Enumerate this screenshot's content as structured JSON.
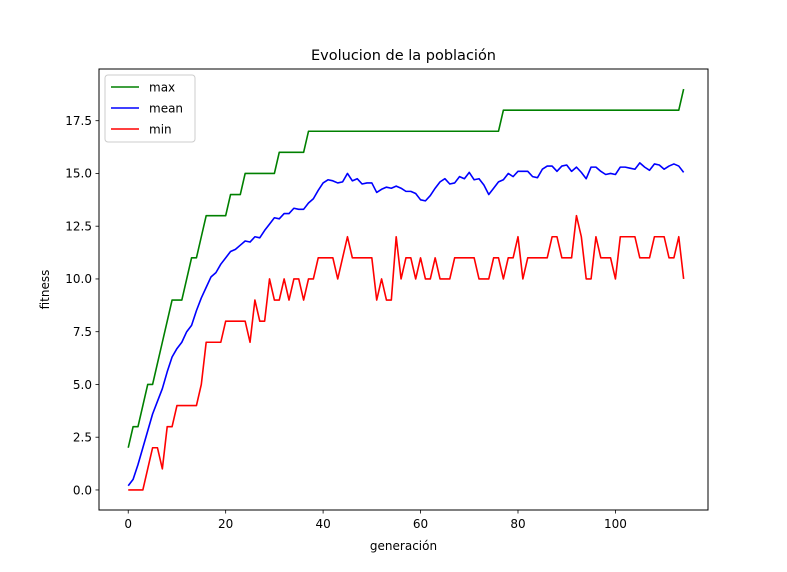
{
  "chart_data": {
    "type": "line",
    "title": "Evolucion de la población",
    "xlabel": "generación",
    "ylabel": "fitness",
    "xlim": [
      -6,
      119
    ],
    "ylim": [
      -0.95,
      19.95
    ],
    "xticks": [
      0,
      20,
      40,
      60,
      80,
      100
    ],
    "yticks": [
      0.0,
      2.5,
      5.0,
      7.5,
      10.0,
      12.5,
      15.0,
      17.5
    ],
    "ytick_labels": [
      "0.0",
      "2.5",
      "5.0",
      "7.5",
      "10.0",
      "12.5",
      "15.0",
      "17.5"
    ],
    "grid": false,
    "legend_position": "top-left",
    "series": [
      {
        "name": "max",
        "color": "#008000",
        "x": [
          0,
          1,
          2,
          3,
          4,
          5,
          6,
          7,
          8,
          9,
          10,
          11,
          12,
          13,
          14,
          15,
          16,
          17,
          18,
          19,
          20,
          21,
          22,
          23,
          24,
          25,
          26,
          27,
          28,
          29,
          30,
          31,
          32,
          33,
          34,
          35,
          36,
          37,
          38,
          39,
          40,
          41,
          42,
          43,
          44,
          45,
          46,
          47,
          48,
          49,
          50,
          51,
          52,
          53,
          54,
          55,
          56,
          57,
          58,
          59,
          60,
          61,
          62,
          63,
          64,
          65,
          66,
          67,
          68,
          69,
          70,
          71,
          72,
          73,
          74,
          75,
          76,
          77,
          78,
          79,
          80,
          81,
          82,
          83,
          84,
          85,
          86,
          87,
          88,
          89,
          90,
          91,
          92,
          93,
          94,
          95,
          96,
          97,
          98,
          99,
          100,
          101,
          102,
          103,
          104,
          105,
          106,
          107,
          108,
          109,
          110,
          111,
          112,
          113,
          114
        ],
        "values": [
          2,
          3,
          3,
          4,
          5,
          5,
          6,
          7,
          8,
          9,
          9,
          9,
          10,
          11,
          11,
          12,
          13,
          13,
          13,
          13,
          13,
          14,
          14,
          14,
          15,
          15,
          15,
          15,
          15,
          15,
          15,
          16,
          16,
          16,
          16,
          16,
          16,
          17,
          17,
          17,
          17,
          17,
          17,
          17,
          17,
          17,
          17,
          17,
          17,
          17,
          17,
          17,
          17,
          17,
          17,
          17,
          17,
          17,
          17,
          17,
          17,
          17,
          17,
          17,
          17,
          17,
          17,
          17,
          17,
          17,
          17,
          17,
          17,
          17,
          17,
          17,
          17,
          18,
          18,
          18,
          18,
          18,
          18,
          18,
          18,
          18,
          18,
          18,
          18,
          18,
          18,
          18,
          18,
          18,
          18,
          18,
          18,
          18,
          18,
          18,
          18,
          18,
          18,
          18,
          18,
          18,
          18,
          18,
          18,
          18,
          18,
          18,
          18,
          18,
          19
        ]
      },
      {
        "name": "mean",
        "color": "#0000ff",
        "x": [
          0,
          1,
          2,
          3,
          4,
          5,
          6,
          7,
          8,
          9,
          10,
          11,
          12,
          13,
          14,
          15,
          16,
          17,
          18,
          19,
          20,
          21,
          22,
          23,
          24,
          25,
          26,
          27,
          28,
          29,
          30,
          31,
          32,
          33,
          34,
          35,
          36,
          37,
          38,
          39,
          40,
          41,
          42,
          43,
          44,
          45,
          46,
          47,
          48,
          49,
          50,
          51,
          52,
          53,
          54,
          55,
          56,
          57,
          58,
          59,
          60,
          61,
          62,
          63,
          64,
          65,
          66,
          67,
          68,
          69,
          70,
          71,
          72,
          73,
          74,
          75,
          76,
          77,
          78,
          79,
          80,
          81,
          82,
          83,
          84,
          85,
          86,
          87,
          88,
          89,
          90,
          91,
          92,
          93,
          94,
          95,
          96,
          97,
          98,
          99,
          100,
          101,
          102,
          103,
          104,
          105,
          106,
          107,
          108,
          109,
          110,
          111,
          112,
          113,
          114
        ],
        "values": [
          0.2,
          0.5,
          1.2,
          2.0,
          2.8,
          3.6,
          4.2,
          4.8,
          5.6,
          6.3,
          6.7,
          7.0,
          7.5,
          7.8,
          8.5,
          9.1,
          9.6,
          10.1,
          10.3,
          10.7,
          11.0,
          11.3,
          11.4,
          11.6,
          11.8,
          11.75,
          12.0,
          11.95,
          12.3,
          12.6,
          12.9,
          12.85,
          13.1,
          13.1,
          13.35,
          13.3,
          13.3,
          13.6,
          13.8,
          14.2,
          14.55,
          14.7,
          14.65,
          14.55,
          14.6,
          15.0,
          14.65,
          14.75,
          14.5,
          14.55,
          14.55,
          14.1,
          14.25,
          14.35,
          14.3,
          14.4,
          14.3,
          14.15,
          14.15,
          14.05,
          13.75,
          13.7,
          13.95,
          14.3,
          14.6,
          14.75,
          14.5,
          14.55,
          14.85,
          14.75,
          15.05,
          14.7,
          14.75,
          14.45,
          14.0,
          14.3,
          14.6,
          14.7,
          15.0,
          14.85,
          15.1,
          15.1,
          15.1,
          14.85,
          14.8,
          15.2,
          15.35,
          15.35,
          15.1,
          15.35,
          15.4,
          15.1,
          15.3,
          15.05,
          14.75,
          15.3,
          15.3,
          15.1,
          14.95,
          15.0,
          14.95,
          15.3,
          15.3,
          15.25,
          15.2,
          15.5,
          15.3,
          15.15,
          15.45,
          15.4,
          15.2,
          15.35,
          15.45,
          15.35,
          15.05
        ]
      },
      {
        "name": "min",
        "color": "#ff0000",
        "x": [
          0,
          1,
          2,
          3,
          4,
          5,
          6,
          7,
          8,
          9,
          10,
          11,
          12,
          13,
          14,
          15,
          16,
          17,
          18,
          19,
          20,
          21,
          22,
          23,
          24,
          25,
          26,
          27,
          28,
          29,
          30,
          31,
          32,
          33,
          34,
          35,
          36,
          37,
          38,
          39,
          40,
          41,
          42,
          43,
          44,
          45,
          46,
          47,
          48,
          49,
          50,
          51,
          52,
          53,
          54,
          55,
          56,
          57,
          58,
          59,
          60,
          61,
          62,
          63,
          64,
          65,
          66,
          67,
          68,
          69,
          70,
          71,
          72,
          73,
          74,
          75,
          76,
          77,
          78,
          79,
          80,
          81,
          82,
          83,
          84,
          85,
          86,
          87,
          88,
          89,
          90,
          91,
          92,
          93,
          94,
          95,
          96,
          97,
          98,
          99,
          100,
          101,
          102,
          103,
          104,
          105,
          106,
          107,
          108,
          109,
          110,
          111,
          112,
          113,
          114
        ],
        "values": [
          0,
          0,
          0,
          0,
          1,
          2,
          2,
          1,
          3,
          3,
          4,
          4,
          4,
          4,
          4,
          5,
          7,
          7,
          7,
          7,
          8,
          8,
          8,
          8,
          8,
          7,
          9,
          8,
          8,
          10,
          9,
          9,
          10,
          9,
          10,
          10,
          9,
          10,
          10,
          11,
          11,
          11,
          11,
          10,
          11,
          12,
          11,
          11,
          11,
          11,
          11,
          9,
          10,
          9,
          9,
          12,
          10,
          11,
          11,
          10,
          11,
          10,
          10,
          11,
          10,
          10,
          10,
          11,
          11,
          11,
          11,
          11,
          10,
          10,
          10,
          11,
          11,
          10,
          11,
          11,
          12,
          10,
          11,
          11,
          11,
          11,
          11,
          12,
          12,
          11,
          11,
          11,
          13,
          12,
          10,
          10,
          12,
          11,
          11,
          11,
          10,
          12,
          12,
          12,
          12,
          11,
          11,
          11,
          12,
          12,
          12,
          11,
          11,
          12,
          10
        ]
      }
    ]
  }
}
